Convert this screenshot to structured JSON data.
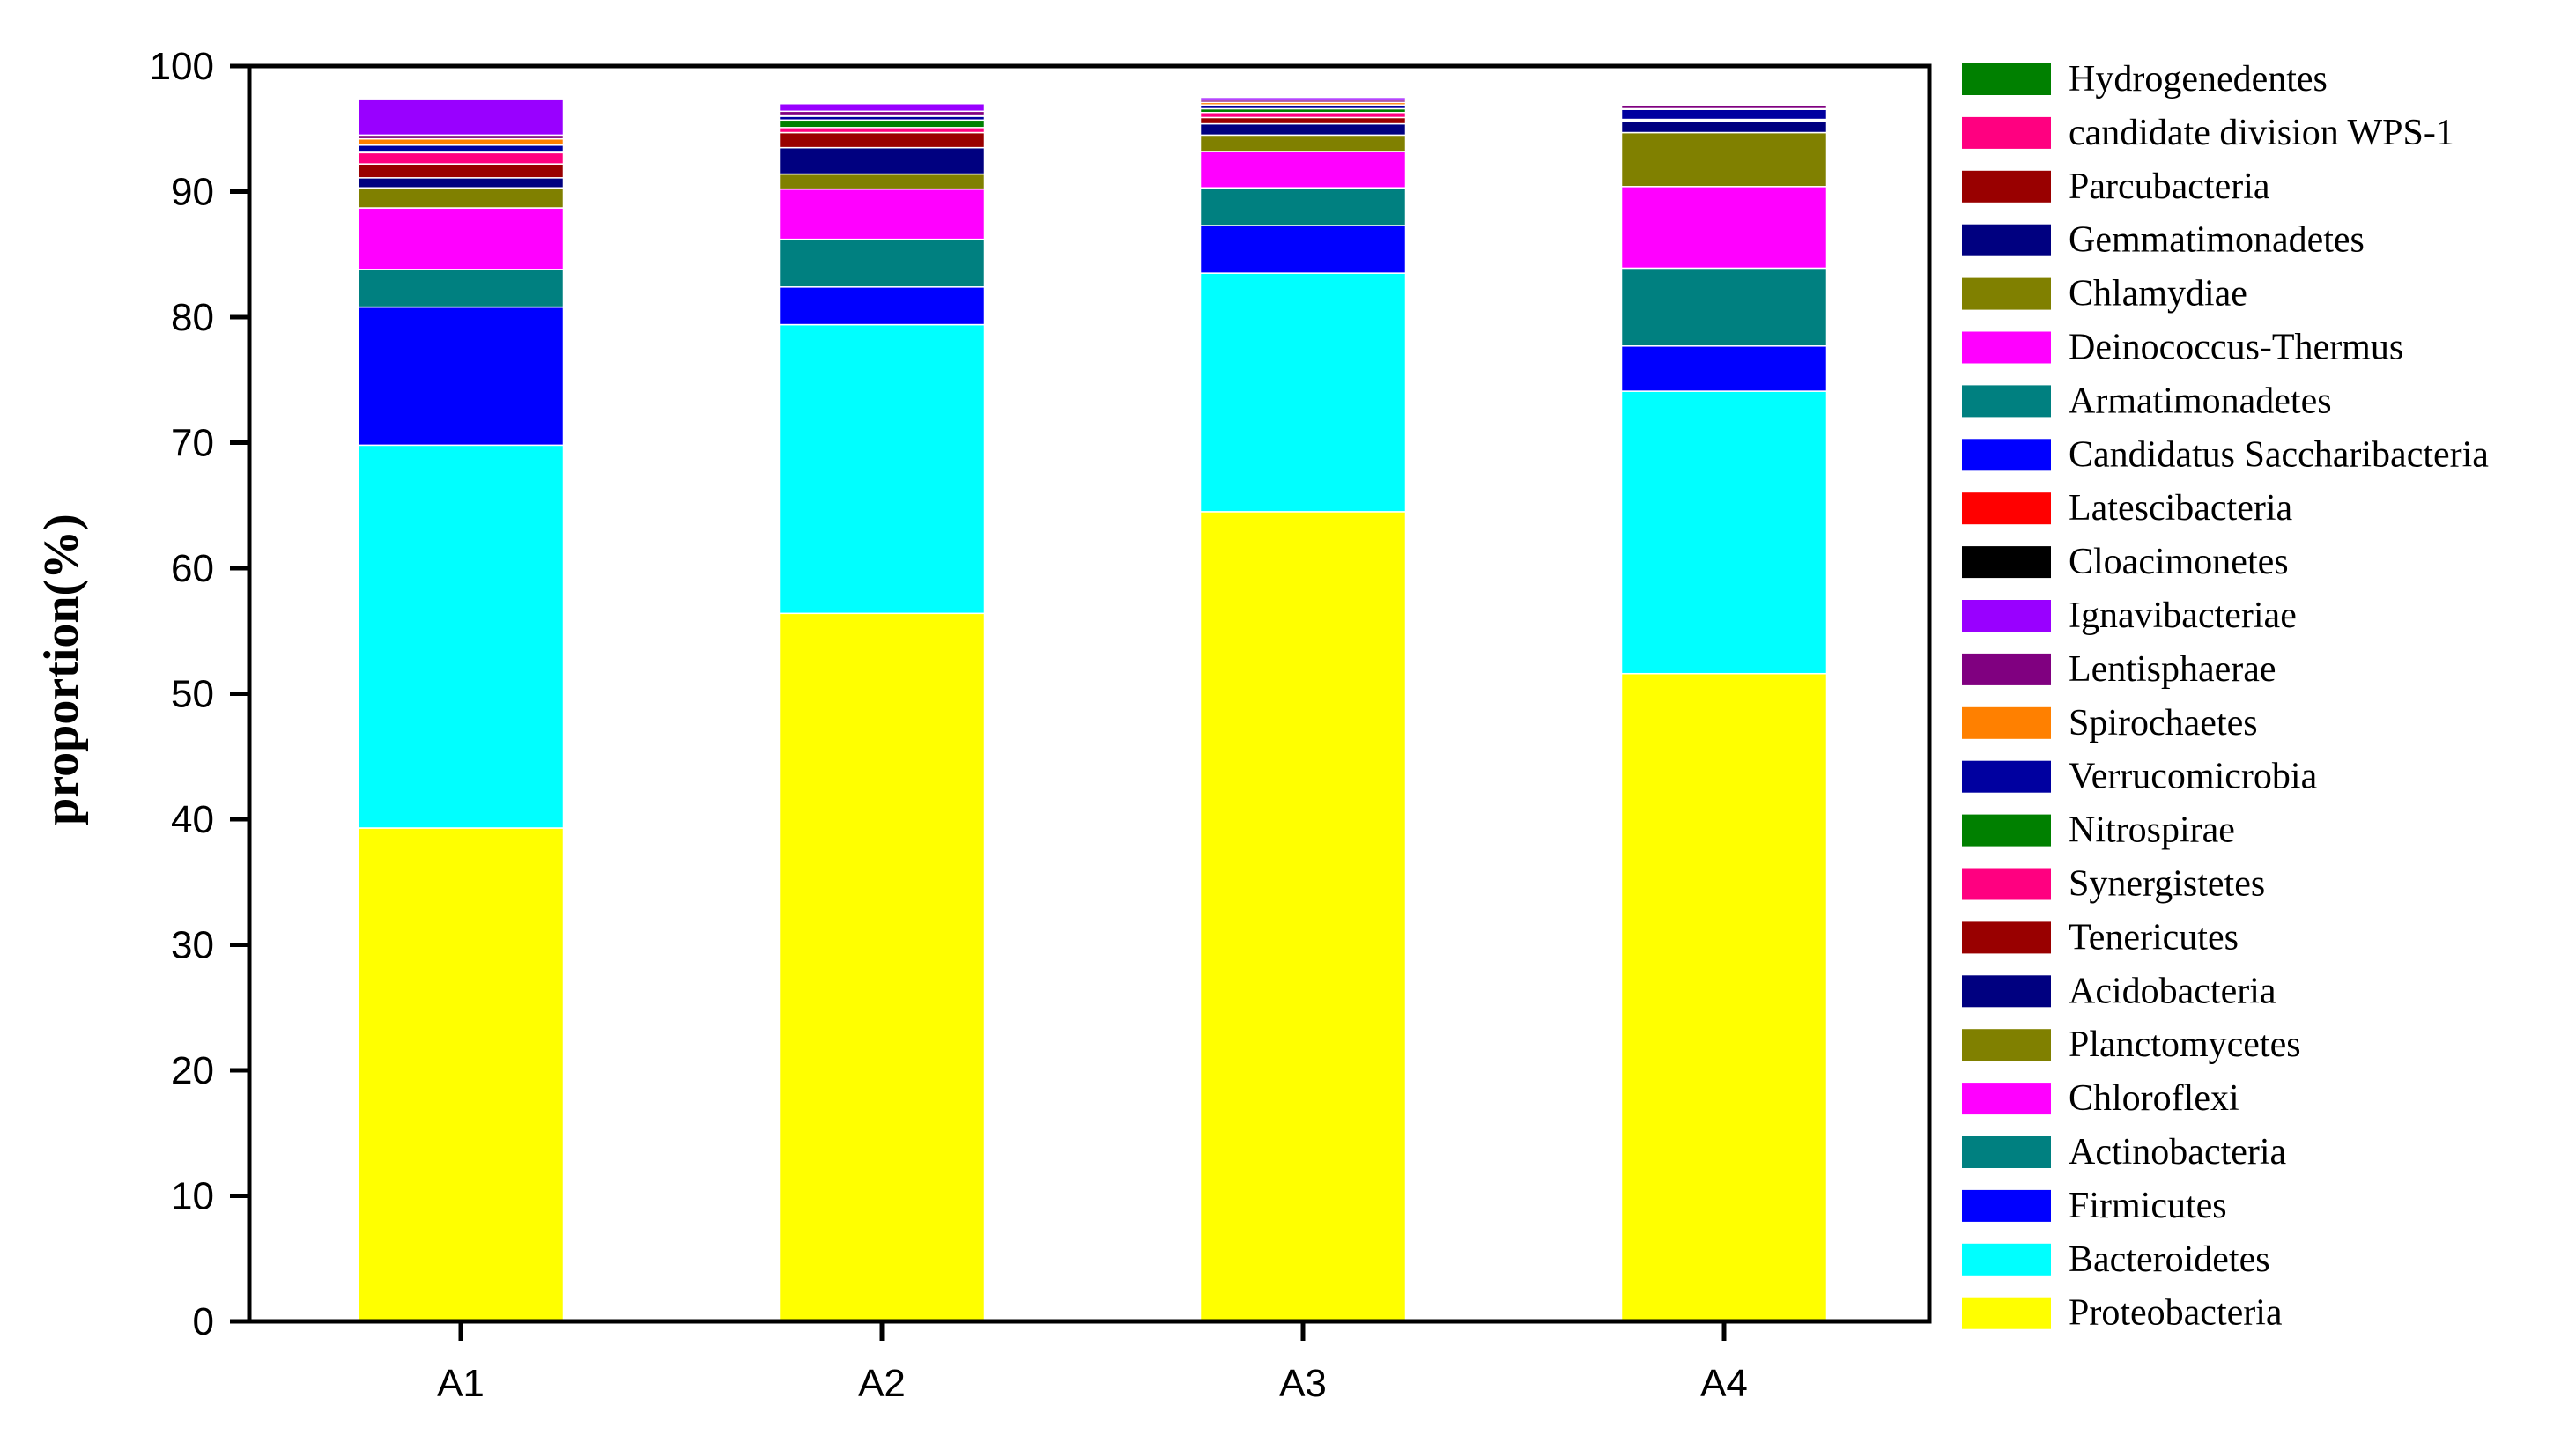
{
  "chart_data": {
    "type": "bar",
    "stacked": true,
    "categories": [
      "A1",
      "A2",
      "A3",
      "A4"
    ],
    "ylabel": "proportion(%)",
    "xlabel": "",
    "ylim": [
      0,
      100
    ],
    "yticks": [
      0,
      10,
      20,
      30,
      40,
      50,
      60,
      70,
      80,
      90,
      100
    ],
    "grid": false,
    "legend_position": "right",
    "series": [
      {
        "name": "Proteobacteria",
        "color": "#FFFF00",
        "values": [
          39.3,
          56.4,
          64.5,
          51.6
        ]
      },
      {
        "name": "Bacteroidetes",
        "color": "#00FFFF",
        "values": [
          30.5,
          23.0,
          19.0,
          22.5
        ]
      },
      {
        "name": "Firmicutes",
        "color": "#0000FF",
        "values": [
          11.0,
          3.0,
          3.8,
          3.6
        ]
      },
      {
        "name": "Actinobacteria",
        "color": "#008080",
        "values": [
          3.0,
          3.8,
          3.0,
          6.2
        ]
      },
      {
        "name": "Chloroflexi",
        "color": "#FF00FF",
        "values": [
          4.9,
          4.0,
          2.9,
          6.5
        ]
      },
      {
        "name": "Planctomycetes",
        "color": "#808000",
        "values": [
          1.6,
          1.2,
          1.3,
          4.3
        ]
      },
      {
        "name": "Acidobacteria",
        "color": "#000080",
        "values": [
          0.8,
          2.1,
          0.9,
          0.9
        ]
      },
      {
        "name": "Tenericutes",
        "color": "#990000",
        "values": [
          1.1,
          1.2,
          0.5,
          0.05
        ]
      },
      {
        "name": "Synergistetes",
        "color": "#FF0080",
        "values": [
          0.9,
          0.4,
          0.4,
          0.05
        ]
      },
      {
        "name": "Nitrospirae",
        "color": "#008000",
        "values": [
          0.1,
          0.6,
          0.3,
          0.05
        ]
      },
      {
        "name": "Verrucomicrobia",
        "color": "#0000A0",
        "values": [
          0.5,
          0.3,
          0.3,
          0.8
        ]
      },
      {
        "name": "Spirochaetes",
        "color": "#FF8000",
        "values": [
          0.5,
          0.1,
          0.2,
          0.05
        ]
      },
      {
        "name": "Lentisphaerae",
        "color": "#800080",
        "values": [
          0.3,
          0.3,
          0.2,
          0.3
        ]
      },
      {
        "name": "Ignavibacteriae",
        "color": "#9900FF",
        "values": [
          2.9,
          0.6,
          0.2,
          0.05
        ]
      },
      {
        "name": "Cloacimonetes",
        "color": "#000000",
        "values": [
          0.05,
          0.1,
          0.1,
          0.05
        ]
      },
      {
        "name": "Latescibacteria",
        "color": "#FF0000",
        "values": [
          0.05,
          0.1,
          0.1,
          0.05
        ]
      },
      {
        "name": "Candidatus Saccharibacteria",
        "color": "#0000FF",
        "values": [
          0.05,
          0.1,
          0.1,
          0.05
        ]
      },
      {
        "name": "Armatimonadetes",
        "color": "#008080",
        "values": [
          0.05,
          0.1,
          0.1,
          0.05
        ]
      },
      {
        "name": "Deinococcus-Thermus",
        "color": "#FF00FF",
        "values": [
          0.05,
          0.1,
          0.1,
          0.05
        ]
      },
      {
        "name": "Chlamydiae",
        "color": "#808000",
        "values": [
          0.05,
          0.1,
          0.1,
          0.05
        ]
      },
      {
        "name": "Gemmatimonadetes",
        "color": "#000080",
        "values": [
          0.05,
          0.1,
          0.1,
          0.05
        ]
      },
      {
        "name": "Parcubacteria",
        "color": "#990000",
        "values": [
          0.05,
          0.1,
          0.1,
          0.05
        ]
      },
      {
        "name": "candidate division WPS-1",
        "color": "#FF0080",
        "values": [
          0.05,
          0.1,
          0.1,
          0.05
        ]
      },
      {
        "name": "Hydrogenedentes",
        "color": "#008000",
        "values": [
          0.05,
          0.1,
          0.1,
          0.05
        ]
      }
    ]
  }
}
